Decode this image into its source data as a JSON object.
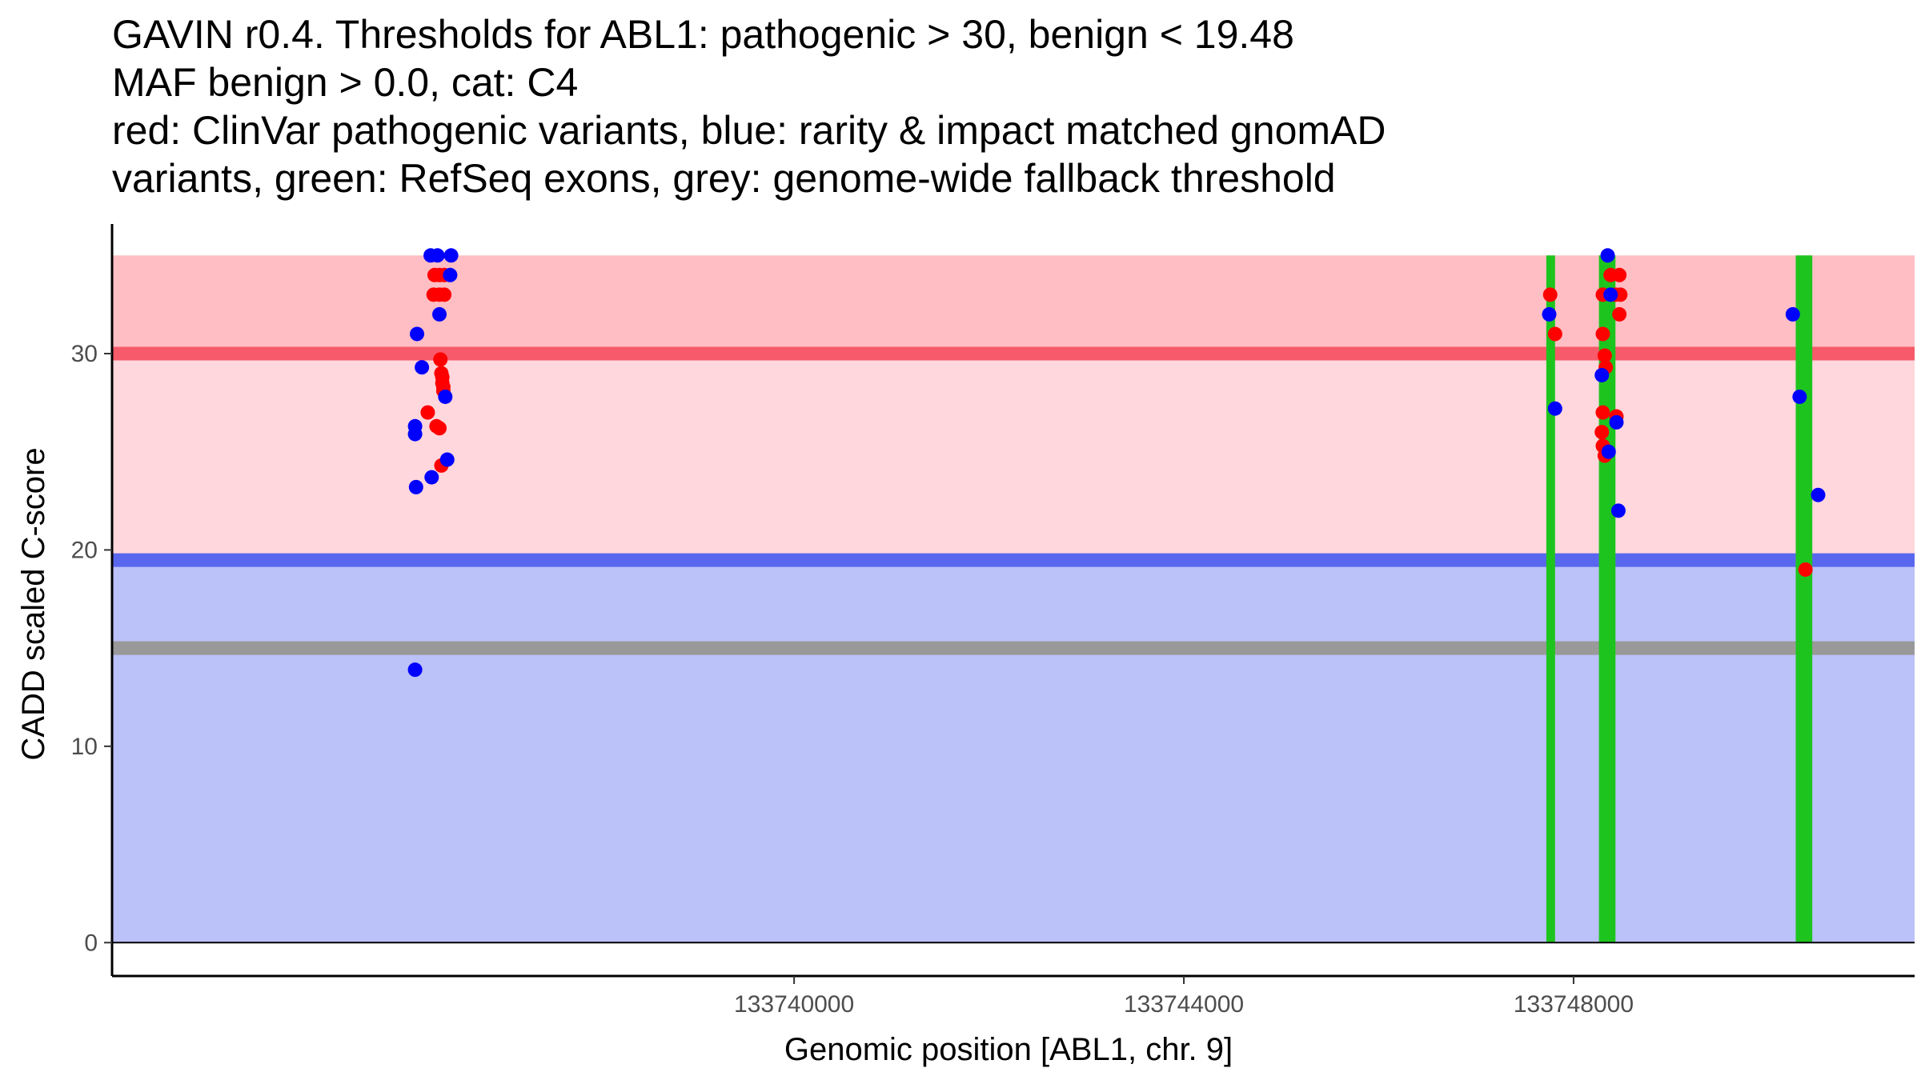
{
  "chart_data": {
    "type": "scatter",
    "title_lines": [
      "GAVIN r0.4. Thresholds for ABL1: pathogenic > 30, benign < 19.48",
      "MAF benign > 0.0, cat: C4",
      "red: ClinVar pathogenic variants, blue: rarity & impact matched gnomAD",
      "variants, green: RefSeq exons, grey: genome-wide fallback threshold"
    ],
    "xlabel": "Genomic position [ABL1, chr. 9]",
    "ylabel": "CADD scaled C-score",
    "xlim": [
      133733000,
      133751500
    ],
    "ylim": [
      -1.7,
      36.6
    ],
    "x_ticks": [
      133740000,
      133744000,
      133748000
    ],
    "x_tick_labels": [
      "133740000",
      "133744000",
      "133748000"
    ],
    "y_ticks": [
      0,
      10,
      20,
      30
    ],
    "y_tick_labels": [
      "0",
      "10",
      "20",
      "30"
    ],
    "grid": false,
    "bands": [
      {
        "name": "benign region",
        "y0": 0,
        "y1": 19.48,
        "color": "#bbc1f9"
      },
      {
        "name": "pathogenic-threshold region",
        "y0": 19.48,
        "y1": 30,
        "color": "#ffd7dc"
      },
      {
        "name": "pathogenic region",
        "y0": 30,
        "y1": 35,
        "color": "#ffbec4"
      }
    ],
    "threshold_lines": [
      {
        "name": "pathogenic threshold",
        "y": 30,
        "color": "#f75a6a"
      },
      {
        "name": "benign threshold",
        "y": 19.48,
        "color": "#5967ee"
      },
      {
        "name": "genome-wide fallback threshold",
        "y": 15,
        "color": "#999999"
      }
    ],
    "exons": [
      {
        "x0": 133747720,
        "x1": 133747810,
        "color": "#1ec41e"
      },
      {
        "x0": 133748260,
        "x1": 133748430,
        "color": "#1ec41e"
      },
      {
        "x0": 133750280,
        "x1": 133750450,
        "color": "#1ec41e"
      }
    ],
    "series": [
      {
        "name": "ClinVar pathogenic variants",
        "color": "#ff0000",
        "points": [
          [
            133736310,
            34
          ],
          [
            133736360,
            34
          ],
          [
            133736410,
            34
          ],
          [
            133736300,
            33
          ],
          [
            133736360,
            33
          ],
          [
            133736410,
            33
          ],
          [
            133736370,
            29.7
          ],
          [
            133736380,
            29
          ],
          [
            133736390,
            28.8
          ],
          [
            133736390,
            28.5
          ],
          [
            133736400,
            28.3
          ],
          [
            133736400,
            28.1
          ],
          [
            133736240,
            27
          ],
          [
            133736330,
            26.3
          ],
          [
            133736360,
            26.2
          ],
          [
            133736380,
            24.3
          ],
          [
            133747760,
            33
          ],
          [
            133747810,
            31
          ],
          [
            133748300,
            33
          ],
          [
            133748380,
            34
          ],
          [
            133748470,
            34
          ],
          [
            133748430,
            33
          ],
          [
            133748480,
            33
          ],
          [
            133748470,
            32
          ],
          [
            133748300,
            31
          ],
          [
            133748320,
            29.9
          ],
          [
            133748330,
            29.3
          ],
          [
            133748300,
            27
          ],
          [
            133748440,
            26.8
          ],
          [
            133748290,
            26
          ],
          [
            133748300,
            25.3
          ],
          [
            133748320,
            24.8
          ],
          [
            133750380,
            19
          ]
        ]
      },
      {
        "name": "rarity & impact matched gnomAD variants",
        "color": "#0000ff",
        "points": [
          [
            133736270,
            35
          ],
          [
            133736340,
            35
          ],
          [
            133736480,
            35
          ],
          [
            133736470,
            34
          ],
          [
            133736130,
            31
          ],
          [
            133736360,
            32
          ],
          [
            133736180,
            29.3
          ],
          [
            133736420,
            27.8
          ],
          [
            133736110,
            26.3
          ],
          [
            133736110,
            25.9
          ],
          [
            133736440,
            24.6
          ],
          [
            133736280,
            23.7
          ],
          [
            133736120,
            23.2
          ],
          [
            133736110,
            13.9
          ],
          [
            133748350,
            35
          ],
          [
            133748380,
            33
          ],
          [
            133747750,
            32
          ],
          [
            133747810,
            27.2
          ],
          [
            133748290,
            28.9
          ],
          [
            133748440,
            26.5
          ],
          [
            133748360,
            25
          ],
          [
            133748460,
            22
          ],
          [
            133750250,
            32
          ],
          [
            133750320,
            27.8
          ],
          [
            133750510,
            22.8
          ]
        ]
      }
    ]
  }
}
